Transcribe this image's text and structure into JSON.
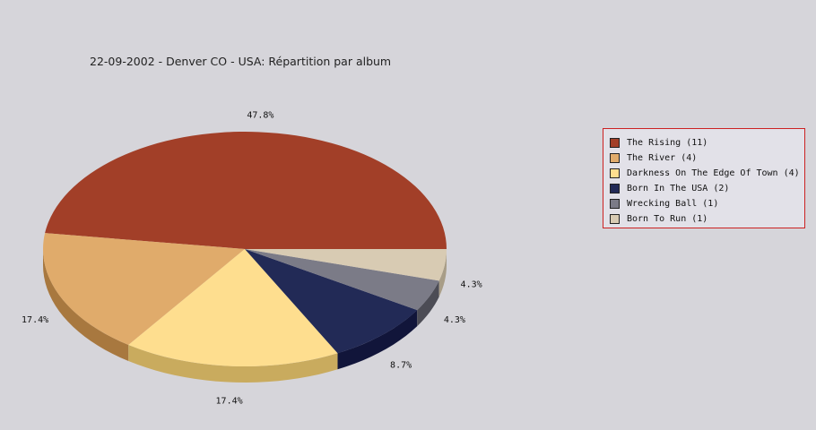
{
  "chart_data": {
    "type": "pie",
    "title": "22-09-2002 - Denver CO - USA:  Répartition par album",
    "categories": [
      "The Rising",
      "The River",
      "Darkness On The Edge Of Town",
      "Born In The USA",
      "Wrecking Ball",
      "Born To Run"
    ],
    "values": [
      11,
      4,
      4,
      2,
      1,
      1
    ],
    "percent_labels": [
      "47.8%",
      "17.4%",
      "17.4%",
      "8.7%",
      "4.3%",
      "4.3%"
    ],
    "legend_labels": [
      "The Rising (11)",
      "The River (4)",
      "Darkness On The Edge Of Town (4)",
      "Born In The USA (2)",
      "Wrecking Ball (1)",
      "Born To Run (1)"
    ],
    "colors": [
      "#a23f28",
      "#e0ab6b",
      "#fede8f",
      "#222a56",
      "#7b7b87",
      "#d8cbb3"
    ],
    "side_colors": [
      "#7a0e00",
      "#a8783f",
      "#c9ab5e",
      "#11153a",
      "#4c4c55",
      "#a89d87"
    ],
    "legend_position": "right",
    "style": "3d"
  }
}
